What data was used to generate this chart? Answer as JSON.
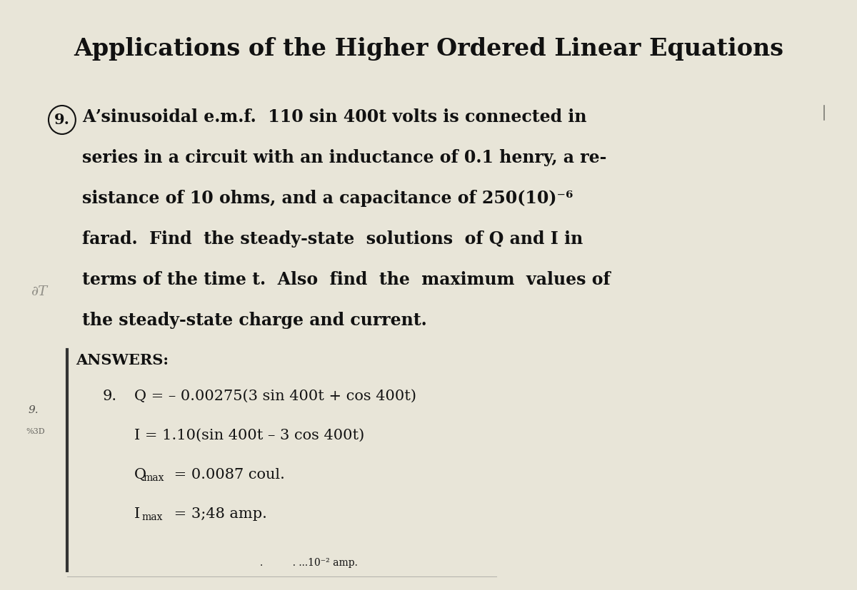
{
  "title": "Applications of the Higher Ordered Linear Equations",
  "background_color": "#e8e5d8",
  "text_color": "#111111",
  "problem_number": "9.",
  "problem_lines": [
    "Aʼsinusoidal e.m.f.  110 sin 400t volts is connected in",
    "series in a circuit with an inductance of 0.1 henry, a re-",
    "sistance of 10 ohms, and a capacitance of 250(10)⁻⁶",
    "farad.  Find  the steady-state  solutions  of Q and I in",
    "terms of the time t.  Also  find  the  maximum  values of",
    "the steady-state charge and current."
  ],
  "answers_label": "ANSWERS:",
  "answer_num": "9.",
  "ans_line1": "Q = – 0.00275(3 sin 400t + cos 400t)",
  "ans_line2": "I = 1.10(sin 400t – 3 cos 400t)",
  "ans_line3_pre": "Q",
  "ans_line3_sub": "max",
  "ans_line3_post": " = 0.0087 coul.",
  "ans_line4_pre": "I",
  "ans_line4_sub": "max",
  "ans_line4_post": " = 3;48 amp.",
  "footer1": ".",
  "footer2": "  . ...10⁻² amp.",
  "margin_text1": "9.",
  "margin_text2": "%3D",
  "bar_color": "#333333",
  "title_fontsize": 24,
  "body_fontsize": 17,
  "answers_fontsize": 15,
  "sub_fontsize": 10
}
